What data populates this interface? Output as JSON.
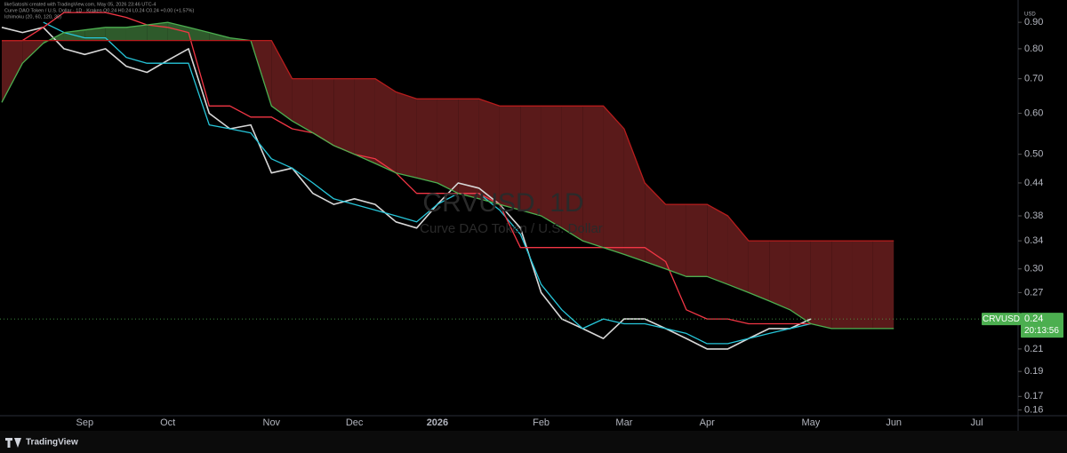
{
  "chart_data": {
    "type": "line",
    "author_line": "likeSatoshi created with TradingView.com, May 05, 2026 23:46 UTC-4",
    "legend_line": "Curve DAO Token / U.S. Dollar · 1D · Kraken  O0.24 H0.24 L0.24 C0.24 +0.00 (+1.57%)",
    "indicator_line": "Ichimoku (20, 60, 120, 30)",
    "watermark": "CRVUSD, 1D",
    "watermark_subtitle": "Curve DAO Token / U.S. Dollar",
    "currency": "USD",
    "symbol_label": "CRVUSD",
    "last_price": 0.24,
    "countdown": "20:13:56",
    "brand": "TradingView",
    "log_scale": true,
    "grid": false,
    "background": "#000000",
    "cloud_colors": {
      "up": "#2e5a2b",
      "down": "#5a1a1a"
    },
    "ylim": [
      0.156,
      0.948
    ],
    "yticks": [
      0.16,
      0.17,
      0.19,
      0.21,
      0.27,
      {
        "value": 0.3,
        "label": "0.30"
      },
      0.34,
      0.38,
      0.44,
      {
        "value": 0.5,
        "label": "0.50"
      },
      {
        "value": 0.6,
        "label": "0.60"
      },
      {
        "value": 0.7,
        "label": "0.70"
      },
      {
        "value": 0.8,
        "label": "0.80"
      },
      {
        "value": 0.9,
        "label": "0.90"
      }
    ],
    "categories": [
      null,
      null,
      null,
      null,
      "Sep",
      null,
      null,
      null,
      "Oct",
      null,
      null,
      null,
      null,
      "Nov",
      null,
      null,
      null,
      "Dec",
      null,
      null,
      null,
      "2026",
      null,
      null,
      null,
      null,
      "Feb",
      null,
      null,
      null,
      "Mar",
      null,
      null,
      null,
      "Apr",
      null,
      null,
      null,
      null,
      "May",
      null,
      null,
      null,
      "Jun",
      null,
      null,
      null,
      "Jul",
      null
    ],
    "series": [
      {
        "color": "#d8d8d8",
        "values": [
          0.88,
          0.86,
          0.88,
          0.8,
          0.78,
          0.8,
          0.74,
          0.72,
          0.76,
          0.8,
          0.6,
          0.56,
          0.57,
          0.46,
          0.47,
          0.42,
          0.4,
          0.41,
          0.4,
          0.37,
          0.36,
          0.4,
          0.44,
          0.43,
          0.4,
          0.36,
          0.27,
          0.24,
          0.23,
          0.22,
          0.24,
          0.24,
          0.23,
          0.22,
          0.21,
          0.21,
          0.22,
          0.23,
          0.23,
          0.24,
          null,
          null,
          null,
          null,
          null,
          null,
          null,
          null,
          null
        ]
      },
      {
        "color": "#26c6da",
        "values": [
          null,
          null,
          0.9,
          0.86,
          0.84,
          0.84,
          0.77,
          0.75,
          0.75,
          0.75,
          0.57,
          0.56,
          0.55,
          0.49,
          0.47,
          0.44,
          0.41,
          0.4,
          0.39,
          0.38,
          0.37,
          0.4,
          0.42,
          0.42,
          0.39,
          0.35,
          0.28,
          0.25,
          0.23,
          0.24,
          0.235,
          0.235,
          0.23,
          0.225,
          0.215,
          0.215,
          0.22,
          0.225,
          0.23,
          0.235,
          null,
          null,
          null,
          null,
          null,
          null,
          null,
          null,
          null
        ]
      },
      {
        "color": "#f23645",
        "values": [
          0.83,
          0.83,
          0.88,
          0.94,
          0.94,
          0.94,
          0.92,
          0.89,
          0.88,
          0.86,
          0.62,
          0.62,
          0.59,
          0.59,
          0.56,
          0.55,
          0.52,
          0.5,
          0.49,
          0.46,
          0.42,
          0.42,
          0.42,
          0.42,
          0.4,
          0.33,
          0.33,
          0.33,
          0.33,
          0.33,
          0.33,
          0.33,
          0.31,
          0.25,
          0.24,
          0.24,
          0.235,
          0.235,
          0.235,
          0.235,
          null,
          null,
          null,
          null,
          null,
          null,
          null,
          null,
          null
        ]
      },
      {
        "color": "#4caf50",
        "values": [
          0.63,
          0.75,
          0.82,
          0.86,
          0.87,
          0.88,
          0.88,
          0.89,
          0.9,
          0.88,
          0.86,
          0.84,
          0.83,
          0.62,
          0.58,
          0.55,
          0.52,
          0.5,
          0.48,
          0.46,
          0.45,
          0.44,
          0.42,
          0.41,
          0.4,
          0.39,
          0.38,
          0.36,
          0.34,
          0.33,
          0.32,
          0.31,
          0.3,
          0.29,
          0.29,
          0.28,
          0.27,
          0.26,
          0.25,
          0.235,
          0.23,
          0.23,
          0.23,
          0.23,
          null,
          null,
          null,
          null,
          null
        ]
      },
      {
        "color": "#b71c1c",
        "values": [
          0.83,
          0.83,
          0.83,
          0.83,
          0.83,
          0.83,
          0.83,
          0.83,
          0.83,
          0.83,
          0.83,
          0.83,
          0.83,
          0.83,
          0.7,
          0.7,
          0.7,
          0.7,
          0.7,
          0.66,
          0.64,
          0.64,
          0.64,
          0.64,
          0.62,
          0.62,
          0.62,
          0.62,
          0.62,
          0.62,
          0.56,
          0.44,
          0.4,
          0.4,
          0.4,
          0.38,
          0.34,
          0.34,
          0.34,
          0.34,
          0.34,
          0.34,
          0.34,
          0.34,
          null,
          null,
          null,
          null,
          null
        ]
      }
    ]
  }
}
